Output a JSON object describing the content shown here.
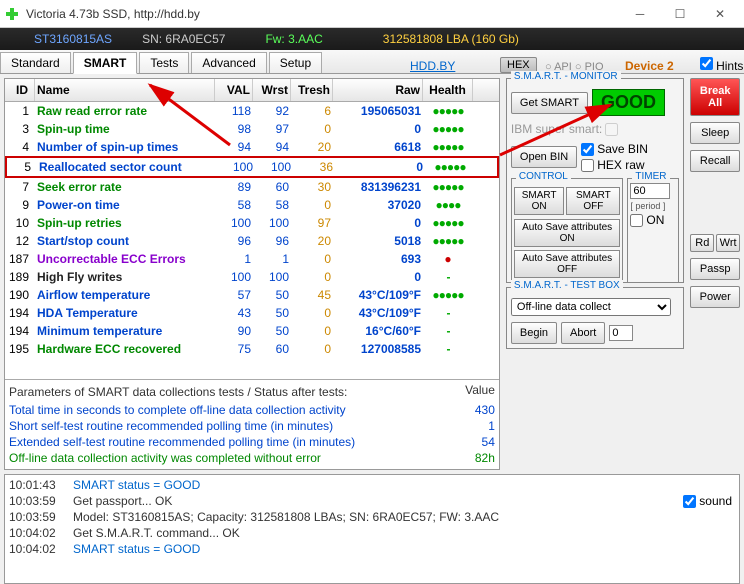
{
  "window": {
    "title": "Victoria 4.73b SSD, http://hdd.by"
  },
  "infobar": {
    "model": "ST3160815AS",
    "sn": "SN: 6RA0EC57",
    "fw": "Fw: 3.AAC",
    "cap": "312581808 LBA (160 Gb)"
  },
  "tabs": {
    "standard": "Standard",
    "smart": "SMART",
    "tests": "Tests",
    "advanced": "Advanced",
    "setup": "Setup",
    "link": "HDD.BY",
    "hex": "HEX",
    "apipio": "○ API ○ PIO",
    "device": "Device 2",
    "hints": "Hints"
  },
  "cols": {
    "id": "ID",
    "name": "Name",
    "val": "VAL",
    "wrst": "Wrst",
    "tresh": "Tresh",
    "raw": "Raw",
    "health": "Health"
  },
  "rows": [
    {
      "id": "1",
      "name": "Raw read error rate",
      "val": "118",
      "wrst": "92",
      "tresh": "6",
      "raw": "195065031",
      "h": "●●●●●",
      "cls": "green"
    },
    {
      "id": "3",
      "name": "Spin-up time",
      "val": "98",
      "wrst": "97",
      "tresh": "0",
      "raw": "0",
      "h": "●●●●●",
      "cls": "green"
    },
    {
      "id": "4",
      "name": "Number of spin-up times",
      "val": "94",
      "wrst": "94",
      "tresh": "20",
      "raw": "6618",
      "h": "●●●●●",
      "cls": "blue"
    },
    {
      "id": "5",
      "name": "Reallocated sector count",
      "val": "100",
      "wrst": "100",
      "tresh": "36",
      "raw": "0",
      "h": "●●●●●",
      "cls": "blue",
      "hl": true
    },
    {
      "id": "7",
      "name": "Seek error rate",
      "val": "89",
      "wrst": "60",
      "tresh": "30",
      "raw": "831396231",
      "h": "●●●●●",
      "cls": "green"
    },
    {
      "id": "9",
      "name": "Power-on time",
      "val": "58",
      "wrst": "58",
      "tresh": "0",
      "raw": "37020",
      "h": "●●●● ",
      "cls": "blue"
    },
    {
      "id": "10",
      "name": "Spin-up retries",
      "val": "100",
      "wrst": "100",
      "tresh": "97",
      "raw": "0",
      "h": "●●●●●",
      "cls": "green"
    },
    {
      "id": "12",
      "name": "Start/stop count",
      "val": "96",
      "wrst": "96",
      "tresh": "20",
      "raw": "5018",
      "h": "●●●●●",
      "cls": "blue"
    },
    {
      "id": "187",
      "name": "Uncorrectable ECC Errors",
      "val": "1",
      "wrst": "1",
      "tresh": "0",
      "raw": "693",
      "h": "●",
      "cls": "purple",
      "red": true
    },
    {
      "id": "189",
      "name": "High Fly writes",
      "val": "100",
      "wrst": "100",
      "tresh": "0",
      "raw": "0",
      "h": "-",
      "cls": "black"
    },
    {
      "id": "190",
      "name": "Airflow temperature",
      "val": "57",
      "wrst": "50",
      "tresh": "45",
      "raw": "43°C/109°F",
      "h": "●●●●●",
      "cls": "blue"
    },
    {
      "id": "194",
      "name": "HDA Temperature",
      "val": "43",
      "wrst": "50",
      "tresh": "0",
      "raw": "43°C/109°F",
      "h": "-",
      "cls": "blue"
    },
    {
      "id": "194",
      "name": "Minimum temperature",
      "val": "90",
      "wrst": "50",
      "tresh": "0",
      "raw": "16°C/60°F",
      "h": "-",
      "cls": "blue"
    },
    {
      "id": "195",
      "name": "Hardware ECC recovered",
      "val": "75",
      "wrst": "60",
      "tresh": "0",
      "raw": "127008585",
      "h": "-",
      "cls": "green"
    }
  ],
  "params": {
    "title": "Parameters of SMART data collections tests / Status after tests:",
    "valueHdr": "Value",
    "rows": [
      {
        "t": "Total time in seconds to complete off-line data collection activity",
        "v": "430",
        "c": "#0044cc"
      },
      {
        "t": "Short self-test routine recommended polling time (in minutes)",
        "v": "1",
        "c": "#0044cc"
      },
      {
        "t": "Extended self-test routine recommended polling time (in minutes)",
        "v": "54",
        "c": "#0044cc"
      },
      {
        "t": "Off-line data collection activity was completed without error",
        "v": "82h",
        "c": "#008800"
      }
    ]
  },
  "monitor": {
    "legend": "S.M.A.R.T. - MONITOR",
    "getsmart": "Get SMART",
    "status": "GOOD",
    "ibmsuper": "IBM super smart:",
    "openbin": "Open BIN",
    "savebin": "Save BIN",
    "hexraw": "HEX raw",
    "controlLegend": "CONTROL",
    "smarton": "SMART ON",
    "smartoff": "SMART OFF",
    "autosaveon": "Auto Save attributes ON",
    "autosaveoff": "Auto Save attributes OFF",
    "timerLegend": "TIMER",
    "timerval": "60",
    "period": "[ period ]",
    "on": "ON"
  },
  "testbox": {
    "legend": "S.M.A.R.T. - TEST BOX",
    "select": "Off-line data collect",
    "begin": "Begin",
    "abort": "Abort",
    "num": "0"
  },
  "sidebtns": {
    "break": "Break All",
    "sleep": "Sleep",
    "recall": "Recall",
    "rd": "Rd",
    "wrt": "Wrt",
    "passp": "Passp",
    "power": "Power"
  },
  "log": [
    {
      "t": "10:01:43",
      "m": "SMART status = GOOD",
      "c": "#0066cc"
    },
    {
      "t": "10:03:59",
      "m": "Get passport... OK",
      "c": "#333"
    },
    {
      "t": "10:03:59",
      "m": "Model: ST3160815AS; Capacity: 312581808 LBAs; SN: 6RA0EC57; FW: 3.AAC",
      "c": "#333"
    },
    {
      "t": "10:04:02",
      "m": "Get S.M.A.R.T. command... OK",
      "c": "#333"
    },
    {
      "t": "10:04:02",
      "m": "SMART status = GOOD",
      "c": "#0066cc"
    }
  ],
  "sound": "sound",
  "colors": {
    "rawblue": "#0044cc"
  }
}
